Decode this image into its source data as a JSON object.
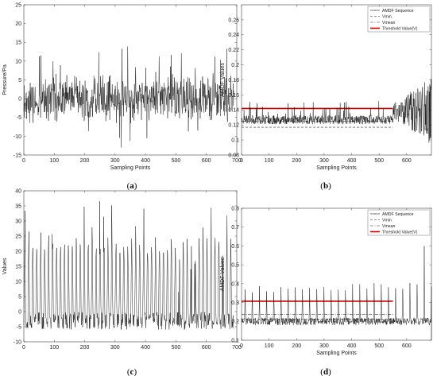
{
  "chart_data": [
    {
      "id": "a",
      "type": "line",
      "panel_label": [
        "(",
        "a",
        ")"
      ],
      "xlabel": "Sampling Points",
      "ylabel": "Pressure/Pa",
      "xlim": [
        0,
        700
      ],
      "ylim": [
        -15,
        25
      ],
      "xticks": [
        0,
        100,
        200,
        300,
        400,
        500,
        600,
        700
      ],
      "yticks": [
        -15,
        -10,
        -5,
        0,
        5,
        10,
        15,
        20,
        25
      ],
      "signal": {
        "kind": "noise",
        "n": 690,
        "center": 0,
        "spread": 4.2,
        "spike_max": 15,
        "spike_min": -13,
        "seed": 11
      },
      "series": [
        {
          "values_summary": "oscillating pressure signal, range approx -13 to 15"
        }
      ],
      "legend": []
    },
    {
      "id": "b",
      "type": "line",
      "panel_label": [
        "(",
        "b",
        ")"
      ],
      "xlabel": "Sampling Points",
      "ylabel": "AMDF Values",
      "xlim": [
        0,
        690
      ],
      "ylim": [
        0.08,
        0.28
      ],
      "xticks": [
        0,
        100,
        200,
        300,
        400,
        500,
        600
      ],
      "yticks": [
        0.08,
        0.1,
        0.12,
        0.14,
        0.16,
        0.18,
        0.2,
        0.22,
        0.24,
        0.26
      ],
      "signal": {
        "kind": "amdf",
        "n": 690,
        "base": 0.127,
        "spread": 0.006,
        "spike": 0.148,
        "tail_start": 550,
        "tail_min": 0.096,
        "tail_max": 0.182,
        "seed": 23
      },
      "hlines": [
        {
          "name": "Vmin",
          "y": 0.117,
          "x0": 0,
          "x1": 550,
          "style": "dash"
        },
        {
          "name": "Vmean",
          "y": 0.125,
          "x0": 0,
          "x1": 550,
          "style": "dashdot"
        },
        {
          "name": "Threshold Value(V)",
          "y": 0.142,
          "x0": 0,
          "x1": 550,
          "style": "red"
        }
      ],
      "legend": [
        "AMDF Sequence",
        "Vmin",
        "Vmean",
        "Threshold Value(V)"
      ],
      "legend_position": "top-right"
    },
    {
      "id": "c",
      "type": "line",
      "panel_label": [
        "(",
        "c",
        ")"
      ],
      "xlabel": "",
      "ylabel": "Values",
      "xlim": [
        0,
        700
      ],
      "ylim": [
        -10,
        40
      ],
      "xticks": [
        0,
        100,
        200,
        300,
        400,
        500,
        600,
        700
      ],
      "yticks": [
        -10,
        -5,
        0,
        5,
        10,
        15,
        20,
        25,
        30,
        35,
        40
      ],
      "signal": {
        "kind": "periodic",
        "n": 690,
        "period": 13,
        "low": -3,
        "high": 22,
        "spike_max": 37,
        "spike_min": -6,
        "seed": 37
      },
      "legend": []
    },
    {
      "id": "d",
      "type": "line",
      "panel_label": [
        "(",
        "d",
        ")"
      ],
      "xlabel": "Sampling Points",
      "ylabel": "AMDF Values",
      "xlim": [
        0,
        690
      ],
      "ylim": [
        0.1,
        0.8
      ],
      "xticks": [
        0,
        100,
        200,
        300,
        400,
        500,
        600
      ],
      "yticks": [
        0.1,
        0.2,
        0.3,
        0.4,
        0.5,
        0.6,
        0.7,
        0.8
      ],
      "signal": {
        "kind": "amdf_peaks",
        "n": 690,
        "base": 0.2,
        "period": 26,
        "peak_low": 0.3,
        "peak_high": 0.58,
        "max_peak": 0.6,
        "seed": 51
      },
      "hlines": [
        {
          "name": "Vmin",
          "y": 0.212,
          "x0": 0,
          "x1": 550,
          "style": "dash"
        },
        {
          "name": "Vmean",
          "y": 0.238,
          "x0": 0,
          "x1": 550,
          "style": "dashdot"
        },
        {
          "name": "Threshold Value(V)",
          "y": 0.307,
          "x0": 0,
          "x1": 550,
          "style": "red"
        }
      ],
      "legend": [
        "AMDF Sequence",
        "Vmin",
        "Vmean",
        "Threshold Value(V)"
      ],
      "legend_position": "top-right"
    }
  ]
}
